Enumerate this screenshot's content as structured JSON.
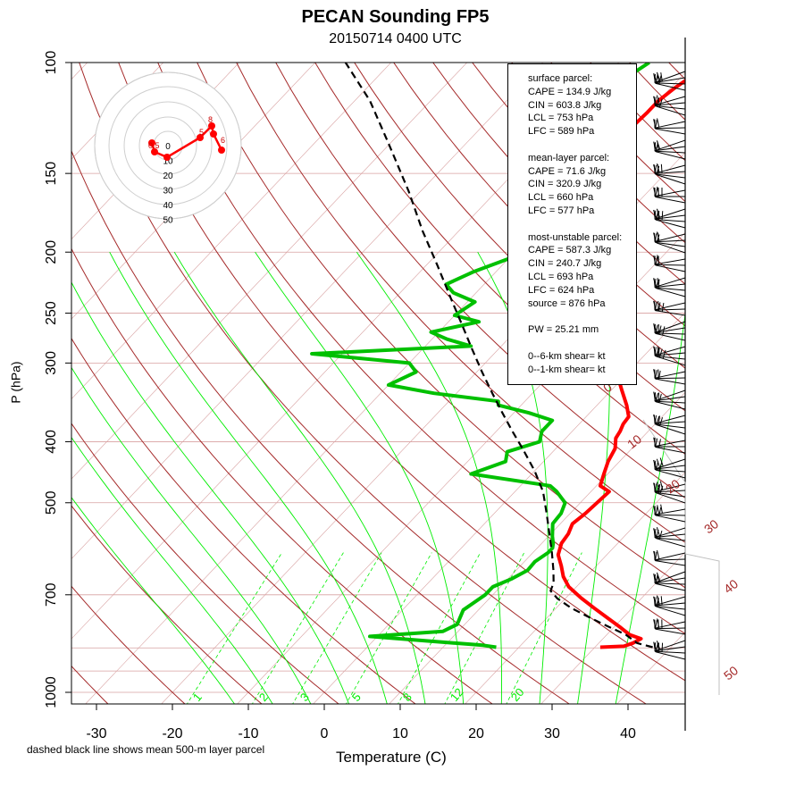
{
  "title": "PECAN Sounding FP5",
  "subtitle": "20150714 0400 UTC",
  "xlabel": "Temperature (C)",
  "ylabel": "P (hPa)",
  "footnote": "dashed black line shows mean 500-m layer parcel",
  "info": {
    "surface_header": "surface parcel:",
    "surface_cape": "CAPE = 134.9 J/kg",
    "surface_cin": "CIN = 603.8 J/kg",
    "surface_lcl": "LCL = 753 hPa",
    "surface_lfc": "LFC = 589 hPa",
    "ml_header": "mean-layer parcel:",
    "ml_cape": "CAPE = 71.6 J/kg",
    "ml_cin": "CIN = 320.9 J/kg",
    "ml_lcl": "LCL = 660 hPa",
    "ml_lfc": "LFC = 577 hPa",
    "mu_header": "most-unstable parcel:",
    "mu_cape": "CAPE = 587.3 J/kg",
    "mu_cin": "CIN = 240.7 J/kg",
    "mu_lcl": "LCL = 693 hPa",
    "mu_lfc": "LFC = 624 hPa",
    "mu_source": "source = 876 hPa",
    "pw": "PW =  25.21 mm",
    "shear_06": "0--6-km shear=  kt",
    "shear_01": "0--1-km shear=  kt"
  },
  "chart_data": {
    "type": "skew-t",
    "x_ticks": [
      "-30",
      "-20",
      "-10",
      "0",
      "10",
      "20",
      "30",
      "40"
    ],
    "y_ticks": [
      "100",
      "150",
      "200",
      "250",
      "300",
      "400",
      "500",
      "700",
      "1000"
    ],
    "y_scale": "log",
    "xlim": [
      -33,
      40
    ],
    "ylim": [
      1000,
      100
    ],
    "dry_adiabat_labels": [
      "0",
      "10",
      "20",
      "30",
      "40",
      "50"
    ],
    "mixing_ratio_labels": [
      "1",
      "2",
      "3",
      "5",
      "8",
      "12",
      "20"
    ],
    "colors": {
      "temperature": "#ff0000",
      "dewpoint": "#00c000",
      "parcel": "#000000",
      "dry_adiabat": "#a52a2a",
      "moist_adiabat": "#00ee00",
      "isobar_line": "#d8a0a0"
    },
    "series": [
      {
        "name": "temperature",
        "points": [
          [
            30.7,
            848
          ],
          [
            33.7,
            845
          ],
          [
            34.5,
            835
          ],
          [
            35.0,
            822
          ],
          [
            33.0,
            810
          ],
          [
            31.0,
            790
          ],
          [
            28.0,
            762
          ],
          [
            25.0,
            735
          ],
          [
            22.0,
            708
          ],
          [
            19.0,
            680
          ],
          [
            17.0,
            655
          ],
          [
            15.4,
            630
          ],
          [
            13.6,
            605
          ],
          [
            12.6,
            580
          ],
          [
            12.3,
            560
          ],
          [
            11.6,
            540
          ],
          [
            12.0,
            520
          ],
          [
            12.2,
            500
          ],
          [
            12.4,
            480
          ],
          [
            10.5,
            470
          ],
          [
            9.5,
            450
          ],
          [
            8.5,
            430
          ],
          [
            7.8,
            410
          ],
          [
            6.6,
            395
          ],
          [
            6.3,
            385
          ],
          [
            5.8,
            375
          ],
          [
            5.6,
            365
          ],
          [
            3.9,
            350
          ],
          [
            1.2,
            330
          ],
          [
            -1.6,
            310
          ],
          [
            -2.9,
            300
          ],
          [
            -4.3,
            290
          ],
          [
            -6.0,
            280
          ],
          [
            -7.6,
            270
          ],
          [
            -9.4,
            260
          ],
          [
            -11.0,
            250
          ],
          [
            -12.6,
            240
          ],
          [
            -14.0,
            230
          ],
          [
            -15.2,
            220
          ],
          [
            -16.9,
            210
          ],
          [
            -18.6,
            200
          ],
          [
            -19.7,
            190
          ],
          [
            -21.9,
            180
          ],
          [
            -23.6,
            170
          ],
          [
            -25.6,
            160
          ],
          [
            -28.0,
            150
          ],
          [
            -30.0,
            140
          ],
          [
            -30.3,
            130
          ],
          [
            -30.0,
            120
          ],
          [
            -30.0,
            115
          ],
          [
            -29.5,
            110
          ],
          [
            -29.0,
            107
          ],
          [
            -27.0,
            103
          ],
          [
            -26.0,
            100
          ]
        ]
      },
      {
        "name": "dewpoint",
        "points": [
          [
            17.0,
            848
          ],
          [
            15.0,
            842
          ],
          [
            8.0,
            830
          ],
          [
            2.0,
            820
          ],
          [
            -1.0,
            815
          ],
          [
            2.0,
            810
          ],
          [
            8.0,
            800
          ],
          [
            9.0,
            780
          ],
          [
            8.0,
            740
          ],
          [
            8.5,
            720
          ],
          [
            9.0,
            700
          ],
          [
            9.0,
            680
          ],
          [
            10.5,
            660
          ],
          [
            11.5,
            640
          ],
          [
            11.4,
            620
          ],
          [
            12.0,
            600
          ],
          [
            12.0,
            590
          ],
          [
            11.5,
            580
          ],
          [
            10.5,
            565
          ],
          [
            9.0,
            540
          ],
          [
            8.8,
            520
          ],
          [
            8.0,
            500
          ],
          [
            5.5,
            480
          ],
          [
            3.9,
            470
          ],
          [
            -8.0,
            450
          ],
          [
            -5.0,
            430
          ],
          [
            -6.0,
            415
          ],
          [
            -3.0,
            400
          ],
          [
            -4.0,
            385
          ],
          [
            -4.0,
            370
          ],
          [
            -8.0,
            360
          ],
          [
            -13.0,
            350
          ],
          [
            -13.5,
            345
          ],
          [
            -23.0,
            335
          ],
          [
            -30.0,
            325
          ],
          [
            -28.0,
            310
          ],
          [
            -30.0,
            300
          ],
          [
            -44.0,
            290
          ],
          [
            -24.0,
            282
          ],
          [
            -28.0,
            275
          ],
          [
            -31.0,
            268
          ],
          [
            -26.0,
            258
          ],
          [
            -30.0,
            252
          ],
          [
            -29.0,
            240
          ],
          [
            -33.0,
            232
          ],
          [
            -35.0,
            225
          ],
          [
            -33.0,
            215
          ],
          [
            -30.0,
            205
          ],
          [
            -25.0,
            195
          ],
          [
            -26.5,
            185
          ],
          [
            -29.5,
            175
          ],
          [
            -34.0,
            165
          ],
          [
            -37.0,
            155
          ],
          [
            -40.0,
            145
          ],
          [
            -41.0,
            135
          ],
          [
            -42.0,
            128
          ],
          [
            -43.0,
            120
          ],
          [
            -40.0,
            115
          ],
          [
            -38.5,
            110
          ],
          [
            -37.0,
            105
          ],
          [
            -36.0,
            100
          ]
        ]
      },
      {
        "name": "mean-500-m-layer-parcel",
        "points": [
          [
            37.6,
            848
          ],
          [
            35.0,
            835
          ],
          [
            32.5,
            810
          ],
          [
            29.0,
            785
          ],
          [
            25.5,
            760
          ],
          [
            22.0,
            735
          ],
          [
            19.0,
            710
          ],
          [
            17.1,
            690
          ],
          [
            16.5,
            670
          ],
          [
            14.9,
            640
          ],
          [
            12.5,
            600
          ],
          [
            9.8,
            560
          ],
          [
            6.9,
            520
          ],
          [
            3.7,
            480
          ],
          [
            1.6,
            460
          ],
          [
            0.0,
            445
          ],
          [
            -4.4,
            410
          ],
          [
            -7.9,
            385
          ],
          [
            -11.5,
            360
          ],
          [
            -15.3,
            335
          ],
          [
            -19.3,
            310
          ],
          [
            -23.5,
            285
          ],
          [
            -28.0,
            260
          ],
          [
            -33.0,
            235
          ],
          [
            -38.5,
            210
          ],
          [
            -44.8,
            185
          ],
          [
            -51.6,
            160
          ],
          [
            -60.0,
            135
          ],
          [
            -68.0,
            115
          ],
          [
            -76.0,
            100
          ]
        ]
      }
    ],
    "hodograph": {
      "ring_labels": [
        "0",
        "10",
        "20",
        "30",
        "40",
        "50"
      ],
      "height_labels": [
        "0.5",
        "5",
        "6",
        "8"
      ]
    }
  }
}
